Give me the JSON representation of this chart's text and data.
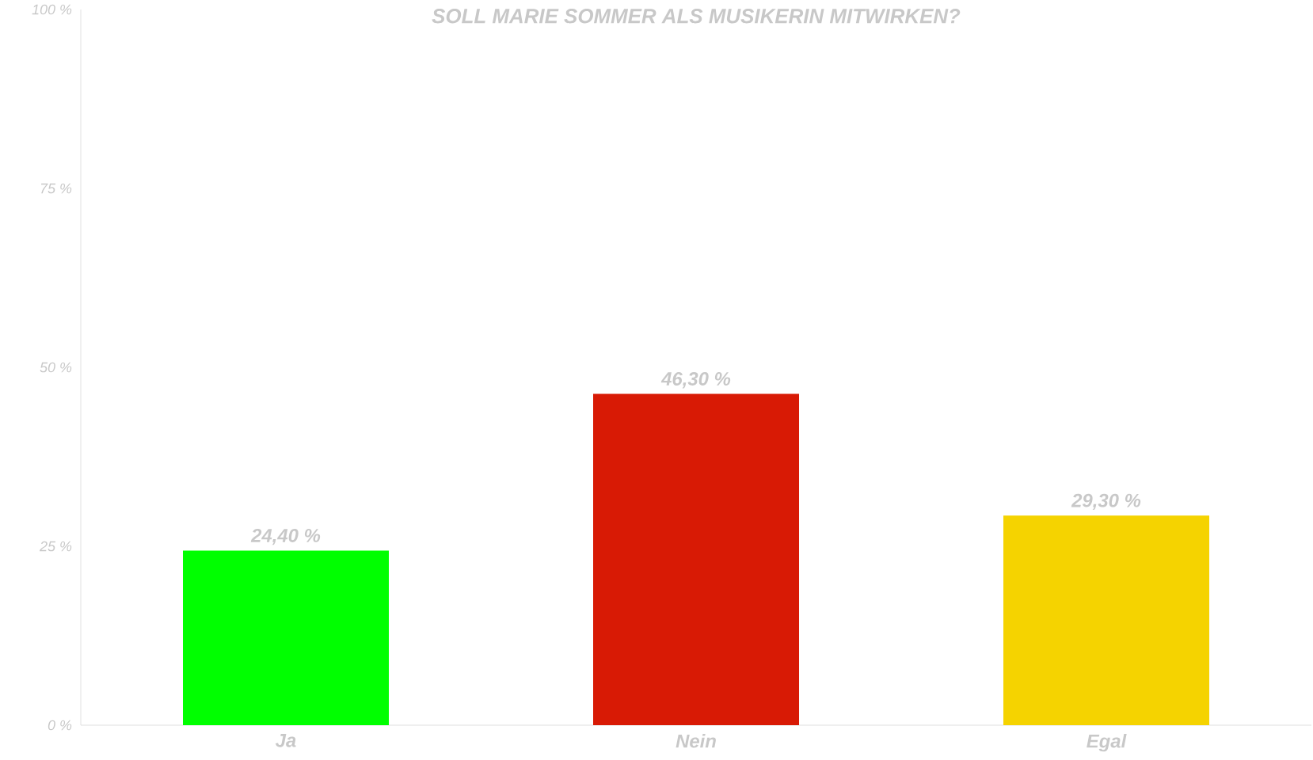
{
  "chart_data": {
    "type": "bar",
    "title": "SOLL MARIE SOMMER ALS MUSIKERIN MITWIRKEN?",
    "categories": [
      "Ja",
      "Nein",
      "Egal"
    ],
    "values": [
      24.4,
      46.3,
      29.3
    ],
    "colors": [
      "#00ff00",
      "#d81a05",
      "#f5d300"
    ],
    "value_labels": [
      "24,40 %",
      "46,30 %",
      "29,30 %"
    ],
    "ylim": [
      0,
      100
    ],
    "yticks": [
      {
        "value": 0,
        "label": "0 %"
      },
      {
        "value": 25,
        "label": "25 %"
      },
      {
        "value": 50,
        "label": "50 %"
      },
      {
        "value": 75,
        "label": "75 %"
      },
      {
        "value": 100,
        "label": "100 %"
      }
    ],
    "grid": false
  }
}
